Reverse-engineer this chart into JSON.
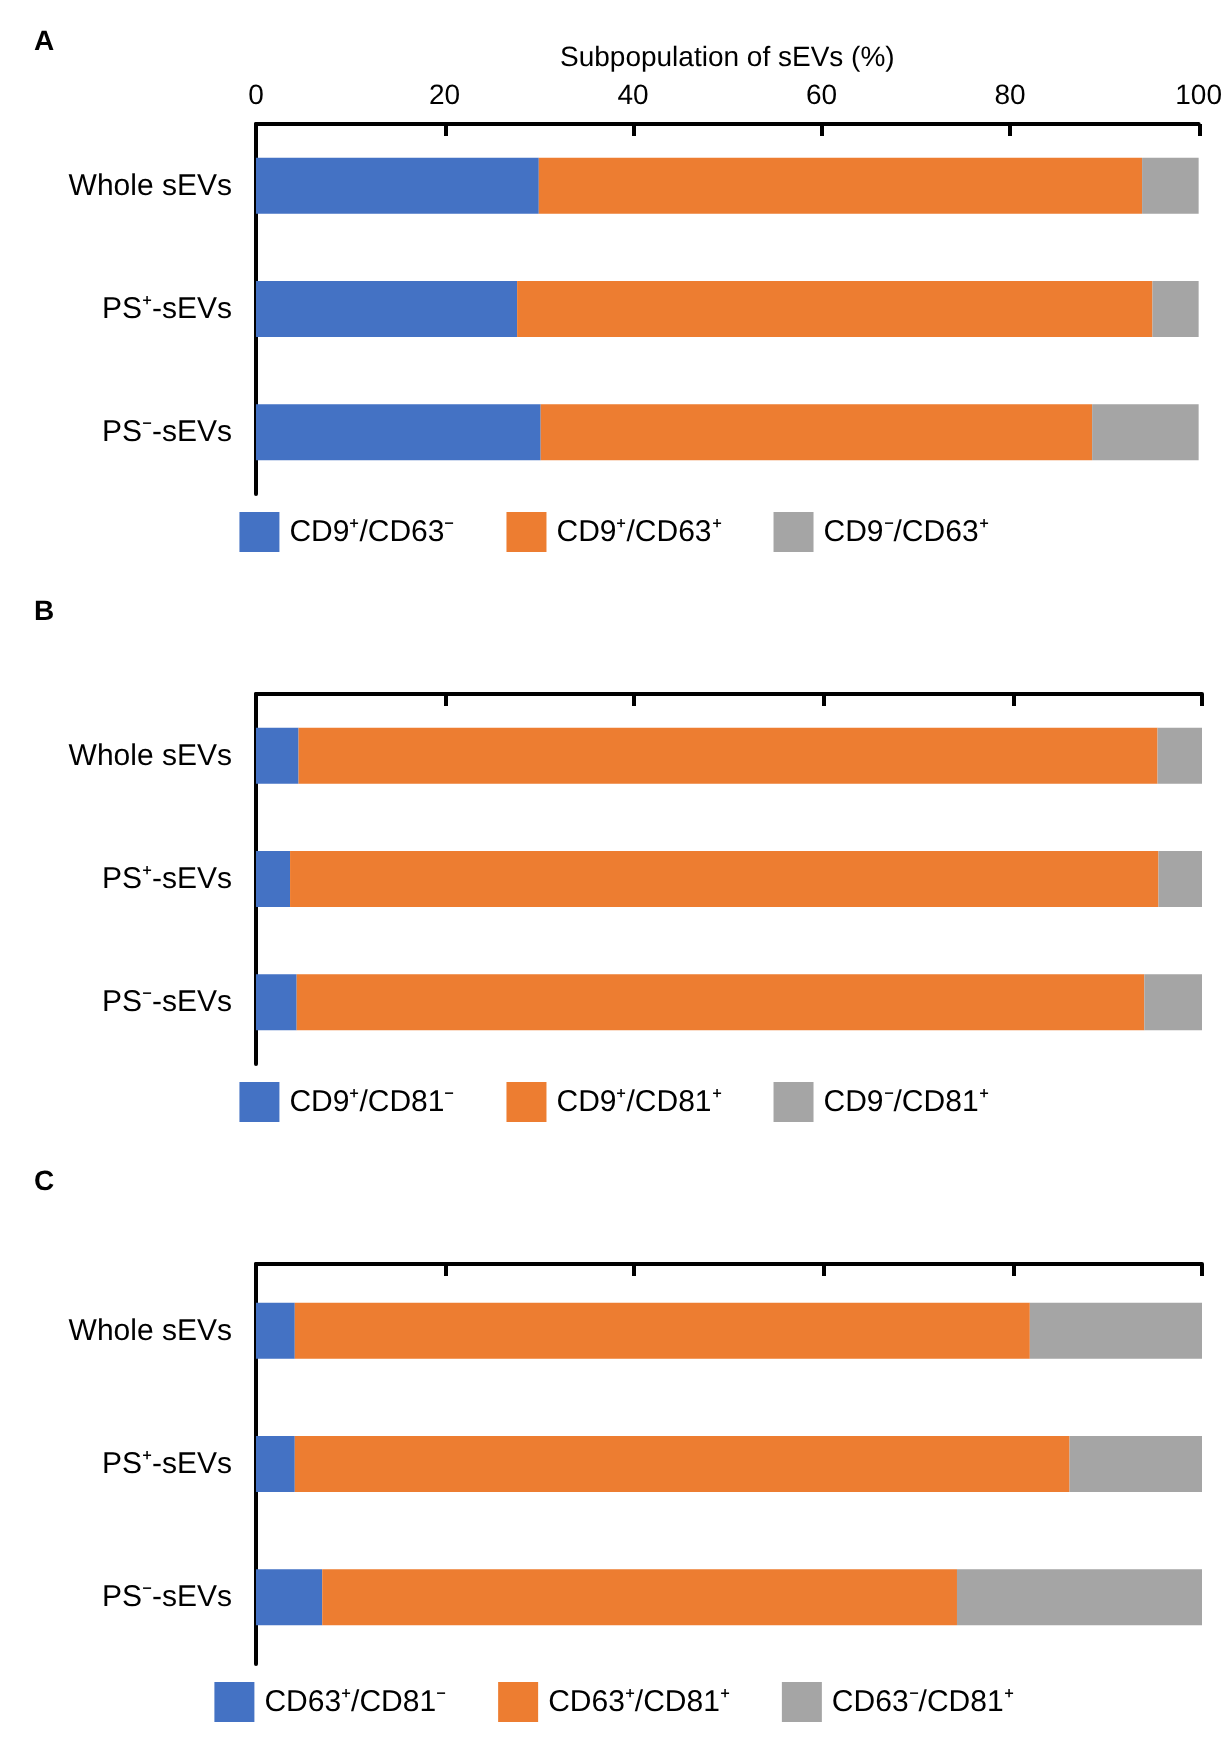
{
  "chart_data": [
    {
      "type": "bar",
      "title": "A",
      "xlabel": "Subpopulation of sEVs (%)",
      "orientation": "horizontal",
      "stacked": true,
      "categories": [
        "Whole sEVs",
        "PS⁺-sEVs",
        "PS⁻-sEVs"
      ],
      "series": [
        {
          "name": "CD9⁺/CD63⁻",
          "color": "#4472c4",
          "values": [
            30.0,
            27.7,
            30.2
          ]
        },
        {
          "name": "CD9⁺/CD63⁺",
          "color": "#ed7d31",
          "values": [
            64.0,
            67.4,
            58.5
          ]
        },
        {
          "name": "CD9⁻/CD63⁺",
          "color": "#a5a5a5",
          "values": [
            6.0,
            4.9,
            11.3
          ]
        }
      ],
      "xlim": [
        0,
        100
      ],
      "xticks": [
        0,
        20,
        40,
        60,
        80,
        100
      ],
      "grid": false,
      "legend": "bottom"
    },
    {
      "type": "bar",
      "title": "B",
      "orientation": "horizontal",
      "stacked": true,
      "categories": [
        "Whole sEVs",
        "PS⁺-sEVs",
        "PS⁻-sEVs"
      ],
      "series": [
        {
          "name": "CD9⁺/CD81⁻",
          "color": "#4472c4",
          "values": [
            4.5,
            3.6,
            4.3
          ]
        },
        {
          "name": "CD9⁺/CD81⁺",
          "color": "#ed7d31",
          "values": [
            90.8,
            91.8,
            89.6
          ]
        },
        {
          "name": "CD9⁻/CD81⁺",
          "color": "#a5a5a5",
          "values": [
            4.7,
            4.6,
            6.1
          ]
        }
      ],
      "xlim": [
        0,
        100
      ],
      "xticks": [
        0,
        20,
        40,
        60,
        80,
        100
      ],
      "tick_labels": "y",
      "grid": false,
      "legend": "bottom"
    },
    {
      "type": "bar",
      "title": "C",
      "orientation": "horizontal",
      "stacked": true,
      "categories": [
        "Whole sEVs",
        "PS⁺-sEVs",
        "PS⁻-sEVs"
      ],
      "series": [
        {
          "name": "CD63⁺/CD81⁻",
          "color": "#4472c4",
          "values": [
            4.1,
            4.1,
            7.0
          ]
        },
        {
          "name": "CD63⁺/CD81⁺",
          "color": "#ed7d31",
          "values": [
            77.7,
            81.9,
            67.1
          ]
        },
        {
          "name": "CD63⁻/CD81⁺",
          "color": "#a5a5a5",
          "values": [
            18.2,
            14.0,
            25.9
          ]
        }
      ],
      "xlim": [
        0,
        100
      ],
      "xticks": [
        0,
        20,
        40,
        60,
        80,
        100
      ],
      "tick_labels": "y",
      "grid": false,
      "legend": "bottom"
    }
  ]
}
